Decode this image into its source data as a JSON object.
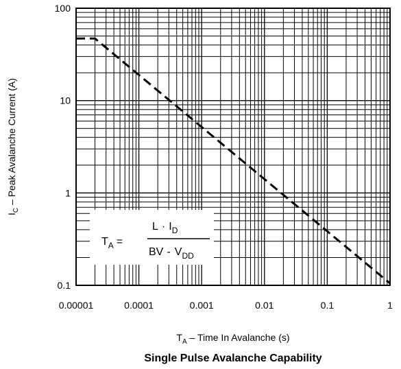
{
  "chart_data": {
    "type": "line",
    "title": "Single Pulse Avalanche Capability",
    "xlabel": {
      "main": "T",
      "sub": "A",
      "rest": " – Time In Avalanche (s)"
    },
    "ylabel": {
      "main": "I",
      "sub": "C",
      "rest": " – Peak Avalanche Current (A)"
    },
    "x_scale": "log",
    "y_scale": "log",
    "xlim": [
      1e-05,
      1
    ],
    "ylim": [
      0.1,
      100
    ],
    "x_ticks": [
      1e-05,
      0.0001,
      0.001,
      0.01,
      0.1,
      1
    ],
    "x_tick_labels": [
      "0.00001",
      "0.0001",
      "0.001",
      "0.01",
      "0.1",
      "1"
    ],
    "y_ticks": [
      0.1,
      1,
      10,
      100
    ],
    "y_tick_labels": [
      "0.1",
      "1",
      "10",
      "100"
    ],
    "grid": true,
    "series": [
      {
        "style": "dashed",
        "x": [
          1e-05,
          2e-05,
          1
        ],
        "y": [
          47,
          47,
          0.105
        ]
      }
    ],
    "annotation": {
      "lhs_main": "T",
      "lhs_sub": "A",
      "equals": "=",
      "num_a": "L",
      "dot": "·",
      "num_b_main": "I",
      "num_b_sub": "D",
      "den_a": "BV",
      "minus": "-",
      "den_b_main": "V",
      "den_b_sub": "DD"
    }
  }
}
